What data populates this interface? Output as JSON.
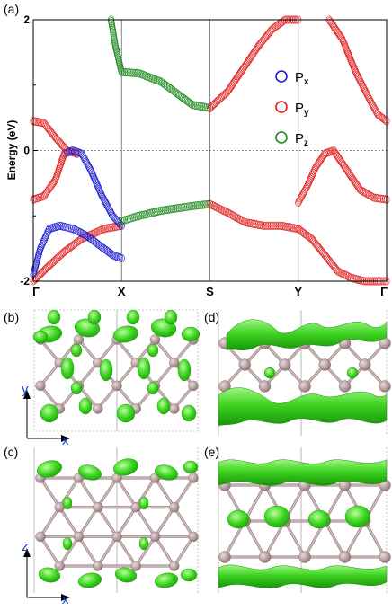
{
  "panels": {
    "a": "(a)",
    "b": "(b)",
    "c": "(c)",
    "d": "(d)",
    "e": "(e)"
  },
  "axes": {
    "b": {
      "vertical": "y",
      "horizontal": "x"
    },
    "c": {
      "vertical": "z",
      "horizontal": "x"
    }
  },
  "chart_data": {
    "type": "line",
    "ylabel": "Energy (eV)",
    "ylim": [
      -2,
      2
    ],
    "yticks": [
      "2",
      "0",
      "-2"
    ],
    "kpoints": [
      "Γ",
      "X",
      "S",
      "Y",
      "Γ"
    ],
    "kpoint_positions": [
      0,
      1,
      2,
      3,
      4
    ],
    "fermi_level": 0,
    "legend": {
      "placement": "right",
      "entries": [
        {
          "label": "P",
          "sub": "x",
          "color": "#1f1fd0"
        },
        {
          "label": "P",
          "sub": "y",
          "color": "#e02020"
        },
        {
          "label": "P",
          "sub": "z",
          "color": "#1e8a1e"
        }
      ]
    },
    "series": [
      {
        "color": "#e02020",
        "x": [
          0,
          0.15,
          0.35,
          0.55,
          0.8,
          1.0
        ],
        "y": [
          -2.0,
          -1.8,
          -1.55,
          -1.35,
          -1.2,
          -1.15
        ]
      },
      {
        "color": "#e02020",
        "x": [
          0,
          0.12,
          0.25,
          0.38,
          0.5
        ],
        "y": [
          0.45,
          0.42,
          0.2,
          0.0,
          -0.05
        ]
      },
      {
        "color": "#1f1fd0",
        "x": [
          0.35,
          0.45,
          0.55,
          0.65,
          0.78,
          0.9,
          1.0
        ],
        "y": [
          -0.05,
          0.0,
          -0.05,
          -0.3,
          -0.7,
          -1.0,
          -1.15
        ]
      },
      {
        "color": "#e02020",
        "x": [
          0,
          0.12,
          0.25,
          0.35
        ],
        "y": [
          -0.75,
          -0.7,
          -0.45,
          -0.05
        ]
      },
      {
        "color": "#1f1fd0",
        "x": [
          0,
          0.08,
          0.18,
          0.3,
          0.45,
          0.6,
          0.75,
          0.9,
          1.0
        ],
        "y": [
          -1.9,
          -1.5,
          -1.2,
          -1.15,
          -1.2,
          -1.3,
          -1.45,
          -1.6,
          -1.65
        ]
      },
      {
        "color": "#1e8a1e",
        "x": [
          0.88,
          0.93,
          1.0,
          1.2,
          1.45,
          1.6,
          1.8,
          2.0
        ],
        "y": [
          2.0,
          1.6,
          1.2,
          1.18,
          1.05,
          0.9,
          0.7,
          0.65
        ]
      },
      {
        "color": "#1e8a1e",
        "x": [
          1.0,
          1.2,
          1.45,
          1.65,
          1.8,
          2.0
        ],
        "y": [
          -1.08,
          -1.0,
          -0.92,
          -0.88,
          -0.85,
          -0.82
        ]
      },
      {
        "color": "#e02020",
        "x": [
          2.0,
          2.2,
          2.4,
          2.55,
          2.7,
          2.85,
          3.0
        ],
        "y": [
          0.65,
          0.9,
          1.3,
          1.6,
          1.85,
          2.0,
          2.0
        ]
      },
      {
        "color": "#e02020",
        "x": [
          2.0,
          2.2,
          2.4,
          2.6,
          2.8,
          3.0
        ],
        "y": [
          -0.82,
          -0.95,
          -1.1,
          -1.15,
          -1.15,
          -1.2
        ]
      },
      {
        "color": "#e02020",
        "x": [
          3.0,
          3.1,
          3.2,
          3.3,
          3.4,
          3.55,
          3.7,
          3.85,
          4.0
        ],
        "y": [
          -0.8,
          -0.55,
          -0.25,
          -0.05,
          0.0,
          -0.3,
          -0.6,
          -0.72,
          -0.75
        ]
      },
      {
        "color": "#e02020",
        "x": [
          3.0,
          3.15,
          3.3,
          3.45,
          3.6,
          3.75,
          3.9,
          4.0
        ],
        "y": [
          -1.2,
          -1.35,
          -1.6,
          -1.85,
          -1.95,
          -2.0,
          -2.0,
          -2.0
        ]
      },
      {
        "color": "#e02020",
        "x": [
          3.35,
          3.5,
          3.65,
          3.8,
          3.9,
          4.0
        ],
        "y": [
          2.0,
          1.7,
          1.2,
          0.8,
          0.55,
          0.45
        ]
      }
    ]
  }
}
